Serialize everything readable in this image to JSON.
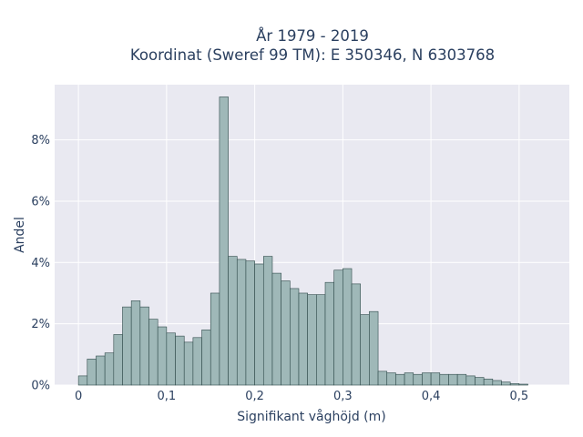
{
  "chart_data": {
    "type": "bar",
    "title_lines": [
      "År 1979 - 2019",
      "Koordinat (Sweref 99 TM): E 350346, N 6303768"
    ],
    "xlabel": "Signifikant våghöjd (m)",
    "ylabel": "Andel",
    "bin_width": 0.01,
    "bin_start": 0.0,
    "values": [
      0.3,
      0.85,
      0.95,
      1.05,
      1.65,
      2.55,
      2.75,
      2.55,
      2.15,
      1.9,
      1.7,
      1.6,
      1.4,
      1.55,
      1.8,
      3.0,
      9.4,
      4.2,
      4.1,
      4.05,
      3.95,
      4.2,
      3.65,
      3.4,
      3.15,
      3.0,
      2.95,
      2.95,
      3.35,
      3.75,
      3.8,
      3.3,
      2.3,
      2.4,
      0.45,
      0.4,
      0.35,
      0.4,
      0.35,
      0.4,
      0.4,
      0.35,
      0.35,
      0.35,
      0.3,
      0.25,
      0.2,
      0.15,
      0.1,
      0.05,
      0.03
    ],
    "x_ticks": [
      {
        "value": 0,
        "label": "0"
      },
      {
        "value": 0.1,
        "label": "0,1"
      },
      {
        "value": 0.2,
        "label": "0,2"
      },
      {
        "value": 0.3,
        "label": "0,3"
      },
      {
        "value": 0.4,
        "label": "0,4"
      },
      {
        "value": 0.5,
        "label": "0,5"
      }
    ],
    "y_ticks": [
      {
        "value": 0,
        "label": "0%"
      },
      {
        "value": 2,
        "label": "2%"
      },
      {
        "value": 4,
        "label": "4%"
      },
      {
        "value": 6,
        "label": "6%"
      },
      {
        "value": 8,
        "label": "8%"
      }
    ],
    "xlim": [
      -0.027,
      0.557
    ],
    "ylim": [
      0,
      9.8
    ],
    "grid": true,
    "colors": {
      "bar_fill": "#9fb8b8",
      "bar_edge": "#2f4a4a",
      "plot_bg": "#e9e9f1",
      "grid": "#ffffff",
      "text": "#2a3f5f"
    }
  }
}
